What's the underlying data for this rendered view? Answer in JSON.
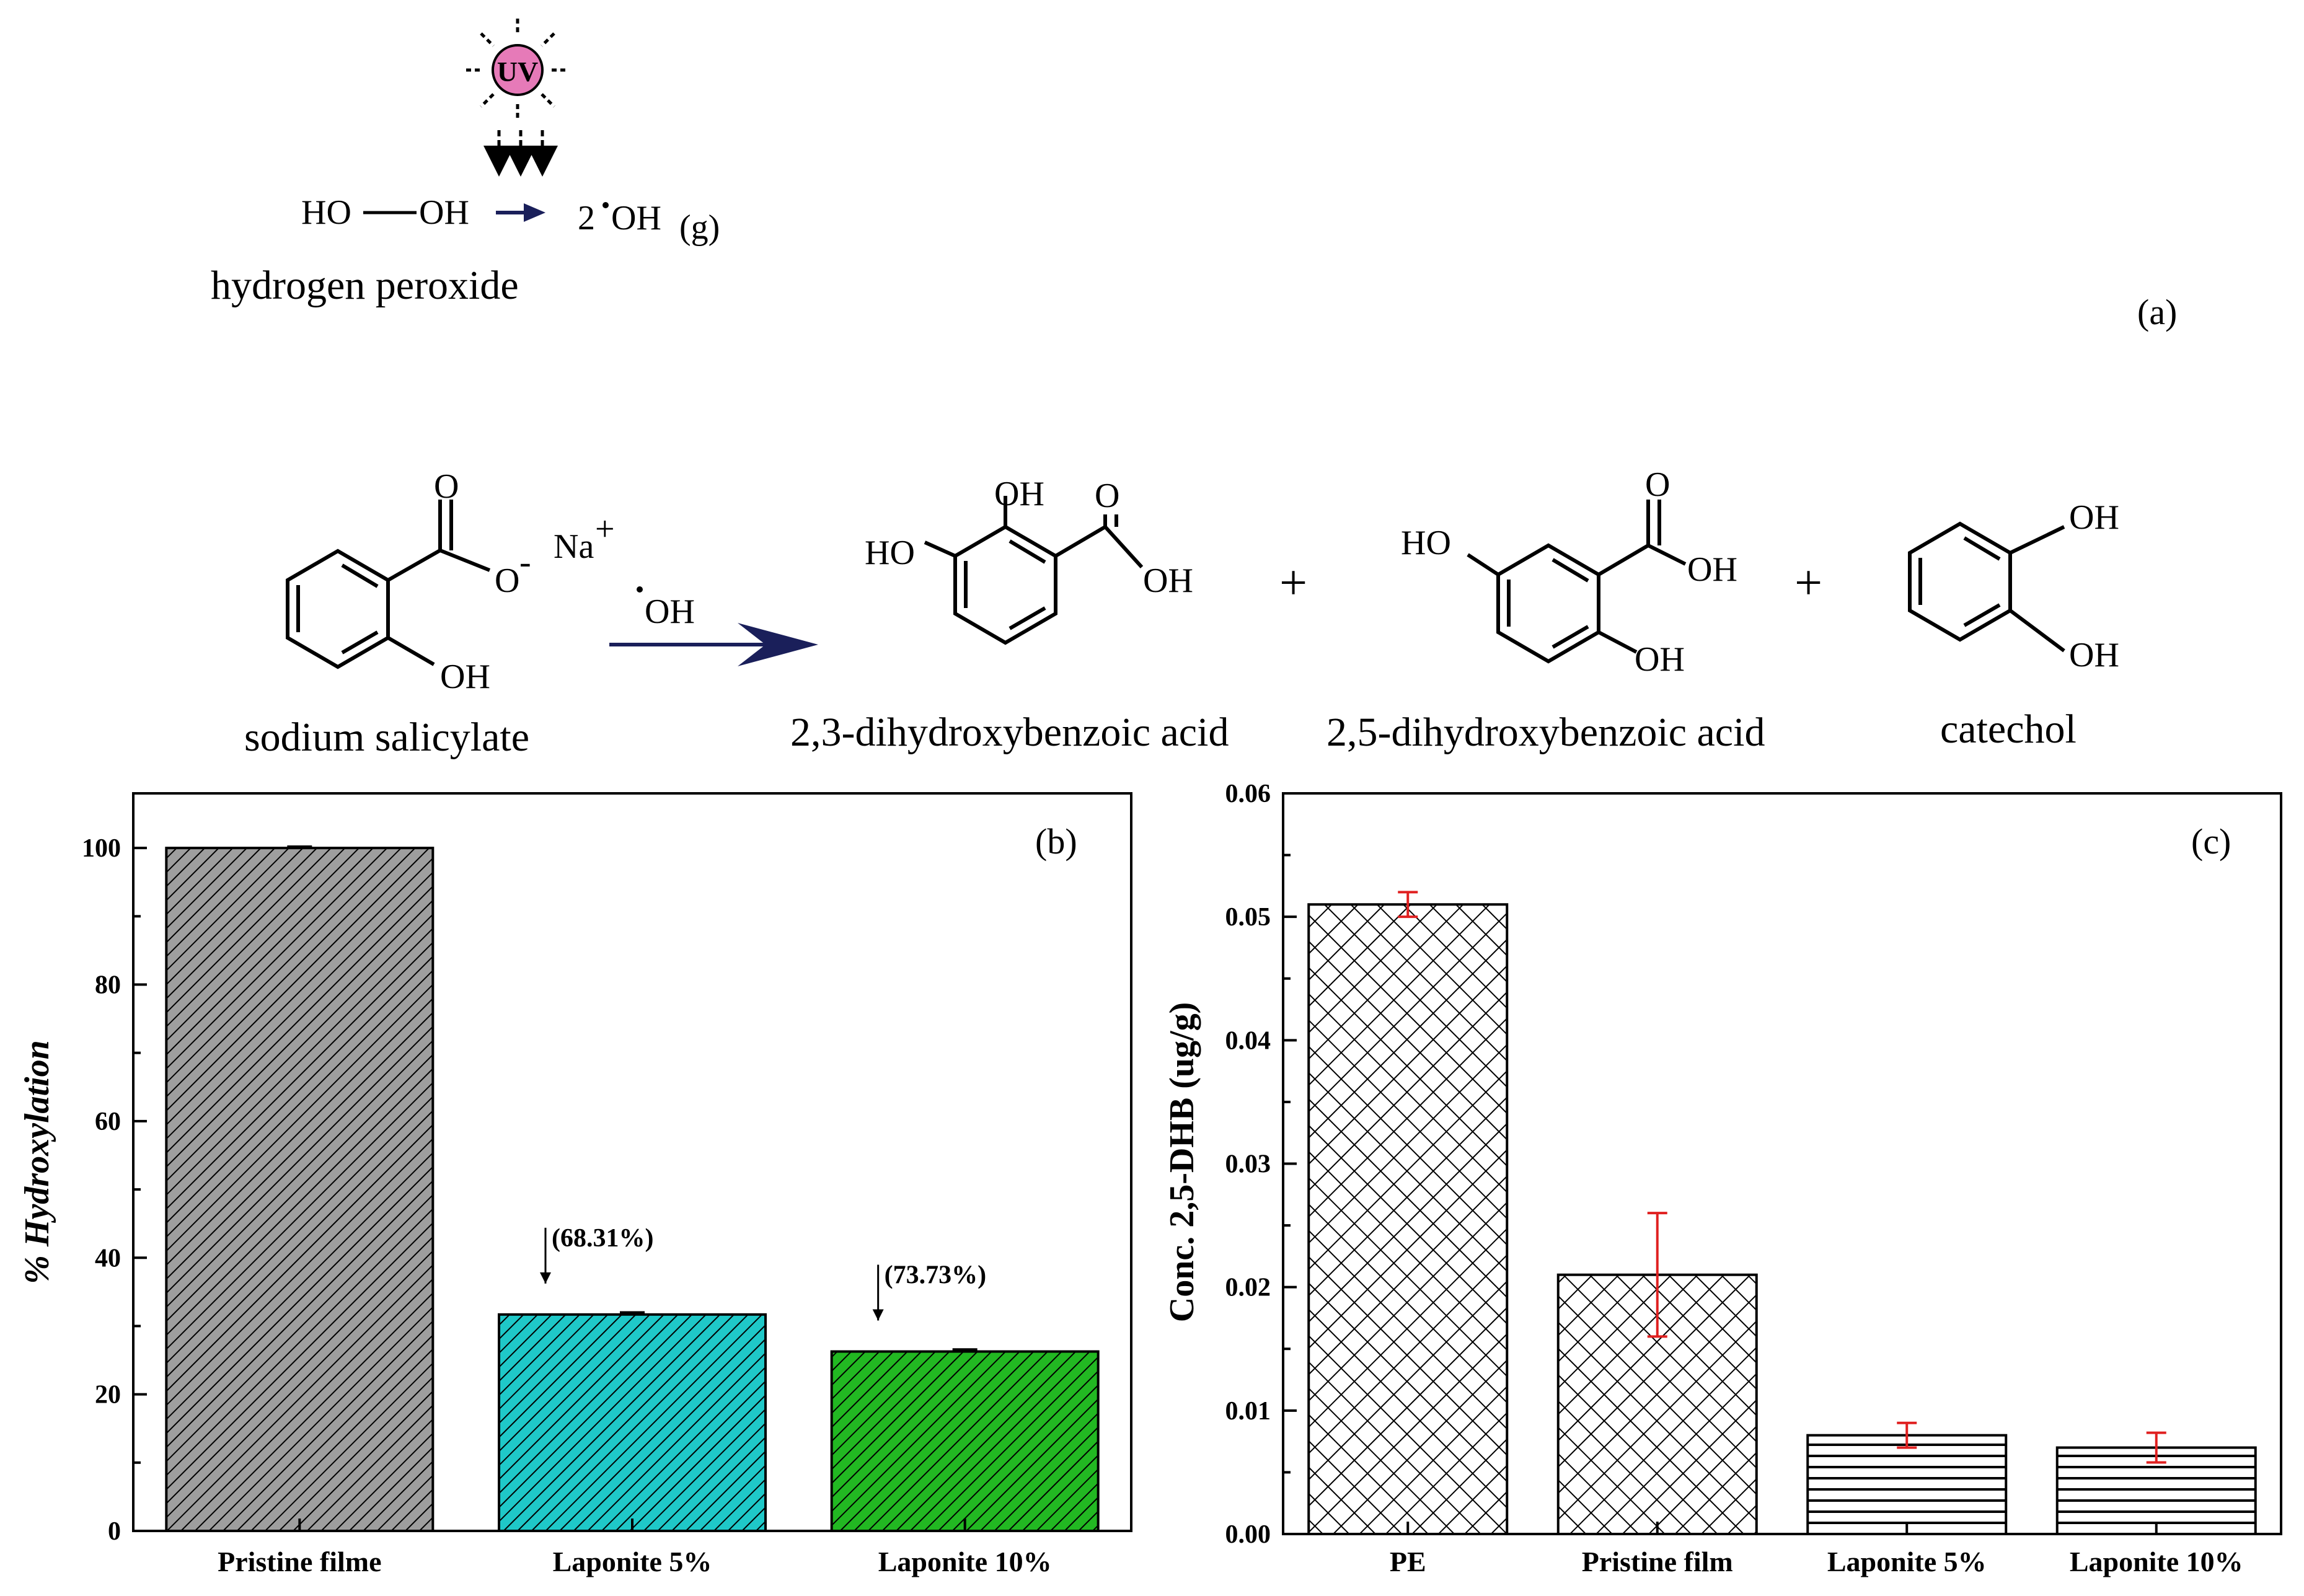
{
  "scheme": {
    "uv_label": "UV",
    "h2o2_formula_left": "HO",
    "h2o2_formula_right": "OH",
    "radical_product_coef": "2",
    "radical_product": "OH",
    "radical_product_sub": "(g)",
    "h2o2_name": "hydrogen peroxide",
    "panel_a_label": "(a)",
    "reactant_name": "sodium salicylate",
    "reactant_na": "Na",
    "reactant_na_charge": "+",
    "reactant_o_minus": "O",
    "reactant_o_charge": "-",
    "reagent": "OH",
    "product1_name": "2,3-dihydroxybenzoic acid",
    "product2_name": "2,5-dihydroxybenzoic acid",
    "product3_name": "catechol",
    "plus1": "+",
    "plus2": "+",
    "atom_O": "O",
    "atom_OH": "OH",
    "atom_HO": "HO"
  },
  "chart_data": [
    {
      "type": "bar",
      "panel": "(b)",
      "categories": [
        "Pristine filme",
        "Laponite 5%",
        "Laponite 10%"
      ],
      "values": [
        100,
        31.69,
        26.27
      ],
      "errors": [
        0.2,
        0.3,
        0.3
      ],
      "colors": [
        "#9e9e9e",
        "#1fc8c8",
        "#22b822"
      ],
      "annotations": [
        "",
        "(68.31%)",
        "(73.73%)"
      ],
      "xlabel": "",
      "ylabel": "% Hydroxylation",
      "ylim": [
        0,
        108
      ],
      "yticks": [
        0,
        20,
        40,
        60,
        80,
        100
      ],
      "grid": false
    },
    {
      "type": "bar",
      "panel": "(c)",
      "categories": [
        "PE",
        "Pristine film",
        "Laponite 5%",
        "Laponite 10%"
      ],
      "values": [
        0.051,
        0.021,
        0.008,
        0.007
      ],
      "errors": [
        0.001,
        0.005,
        0.001,
        0.0012
      ],
      "error_color": "#e02020",
      "patterns": [
        "crosshatch",
        "crosshatch",
        "horizontal",
        "horizontal"
      ],
      "xlabel": "",
      "ylabel": "Conc. 2,5-DHB (ug/g)",
      "ylim": [
        0,
        0.06
      ],
      "yticks": [
        "0.00",
        "0.01",
        "0.02",
        "0.03",
        "0.04",
        "0.05",
        "0.06"
      ],
      "grid": false
    }
  ]
}
